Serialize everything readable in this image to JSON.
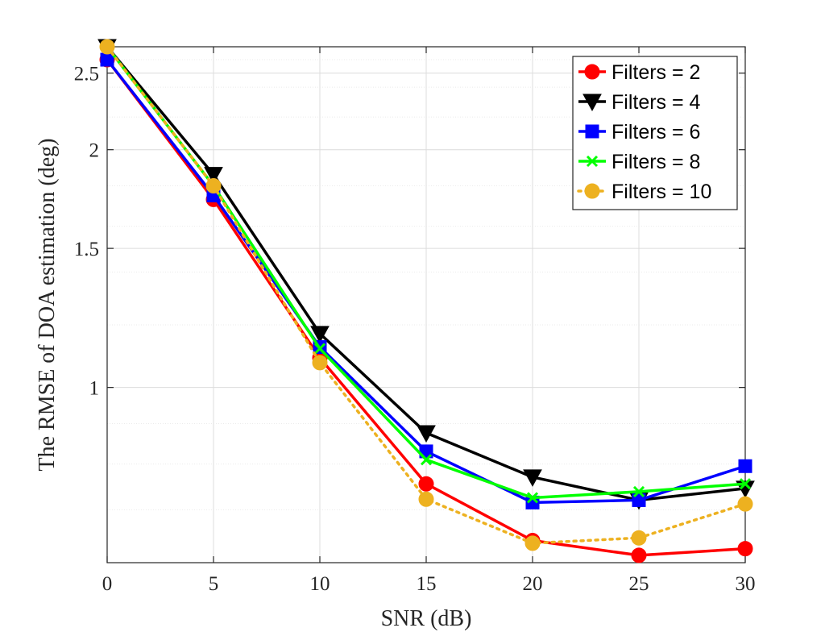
{
  "chart_data": {
    "type": "line",
    "title": "",
    "xlabel": "SNR (dB)",
    "ylabel": "The RMSE of DOA estimation (deg)",
    "x": [
      0,
      5,
      10,
      15,
      20,
      25,
      30
    ],
    "xlim": [
      0,
      30
    ],
    "ylim": [
      0.6,
      2.7
    ],
    "yscale": "log",
    "xticks": [
      0,
      5,
      10,
      15,
      20,
      25,
      30
    ],
    "xtick_labels": [
      "0",
      "5",
      "10",
      "15",
      "20",
      "25",
      "30"
    ],
    "yticks": [
      1,
      1.5,
      2,
      2.5
    ],
    "ytick_labels": [
      "1",
      "1.5",
      "2",
      "2.5"
    ],
    "grid": true,
    "legend_position": "top-right",
    "series": [
      {
        "name": "Filters = 2",
        "label": "Filters = 2",
        "color": "#ff0000",
        "marker": "circle",
        "line_style": "solid",
        "values": [
          2.6,
          1.73,
          1.09,
          0.755,
          0.64,
          0.613,
          0.625
        ]
      },
      {
        "name": "Filters = 4",
        "label": "Filters = 4",
        "color": "#000000",
        "marker": "triangle-down",
        "line_style": "solid",
        "values": [
          2.7,
          1.86,
          1.17,
          0.876,
          0.77,
          0.72,
          0.745
        ]
      },
      {
        "name": "Filters = 6",
        "label": "Filters = 6",
        "color": "#0000ff",
        "marker": "square",
        "line_style": "solid",
        "values": [
          2.6,
          1.75,
          1.125,
          0.83,
          0.715,
          0.72,
          0.795
        ]
      },
      {
        "name": "Filters = 8",
        "label": "Filters = 8",
        "color": "#00ff00",
        "marker": "x",
        "line_style": "solid",
        "values": [
          2.7,
          1.8,
          1.12,
          0.81,
          0.725,
          0.738,
          0.755
        ]
      },
      {
        "name": "Filters = 10",
        "label": "Filters = 10",
        "color": "#edb120",
        "marker": "circle",
        "line_style": "dotted",
        "values": [
          2.7,
          1.8,
          1.075,
          0.722,
          0.635,
          0.645,
          0.712
        ]
      }
    ]
  }
}
